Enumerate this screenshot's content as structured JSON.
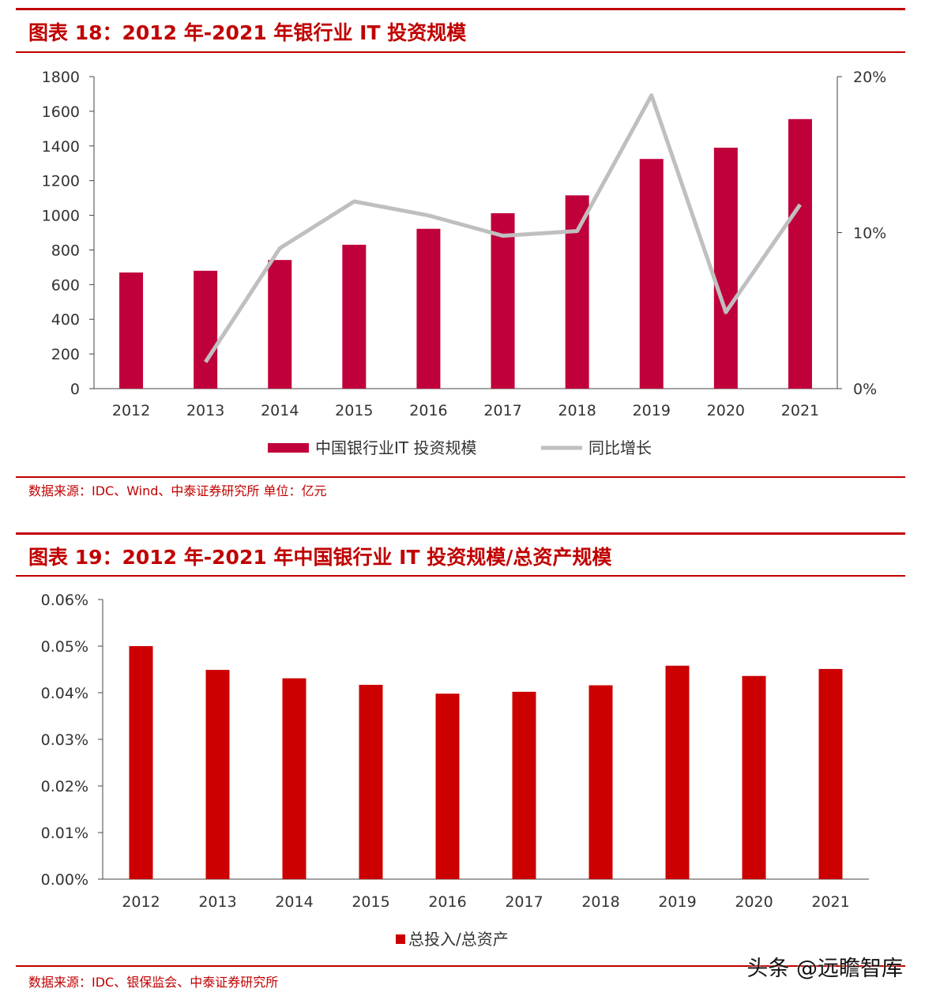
{
  "figure1": {
    "title": "图表 18：2012 年-2021 年银行业 IT 投资规模",
    "source": "数据来源：IDC、Wind、中泰证券研究所   单位：亿元"
  },
  "figure2": {
    "title": "图表 19：2012 年-2021 年中国银行业 IT 投资规模/总资产规模",
    "source": "数据来源：IDC、银保监会、中泰证券研究所"
  },
  "watermark": "头条 @远瞻智库",
  "colors": {
    "accent": "#C00000",
    "bar1": "#C0003A",
    "bar2": "#CC0000",
    "line": "#BFBFBF"
  },
  "chart_data": [
    {
      "type": "bar",
      "categories": [
        "2012",
        "2013",
        "2014",
        "2015",
        "2016",
        "2017",
        "2018",
        "2019",
        "2020",
        "2021"
      ],
      "series": [
        {
          "name": "中国银行业IT 投资规模",
          "type": "bar",
          "axis": "left",
          "values": [
            670,
            680,
            742,
            830,
            922,
            1012,
            1115,
            1325,
            1390,
            1555
          ]
        },
        {
          "name": "同比增长",
          "type": "line",
          "axis": "right",
          "values": [
            null,
            1.7,
            9.0,
            12.0,
            11.1,
            9.8,
            10.1,
            18.8,
            4.9,
            11.8
          ]
        }
      ],
      "ylim": [
        0,
        1800
      ],
      "yticks": [
        0,
        200,
        400,
        600,
        800,
        1000,
        1200,
        1400,
        1600,
        1800
      ],
      "y2lim": [
        0,
        20
      ],
      "y2ticks": [
        "0%",
        "10%",
        "20%"
      ],
      "legend": "bottom"
    },
    {
      "type": "bar",
      "categories": [
        "2012",
        "2013",
        "2014",
        "2015",
        "2016",
        "2017",
        "2018",
        "2019",
        "2020",
        "2021"
      ],
      "series": [
        {
          "name": "总投入/总资产",
          "values": [
            0.05,
            0.0449,
            0.0431,
            0.0417,
            0.0398,
            0.0402,
            0.0416,
            0.0458,
            0.0436,
            0.0451
          ]
        }
      ],
      "ylim": [
        0,
        0.06
      ],
      "yticks": [
        "0.00%",
        "0.01%",
        "0.02%",
        "0.03%",
        "0.04%",
        "0.05%",
        "0.06%"
      ],
      "legend": "bottom"
    }
  ]
}
